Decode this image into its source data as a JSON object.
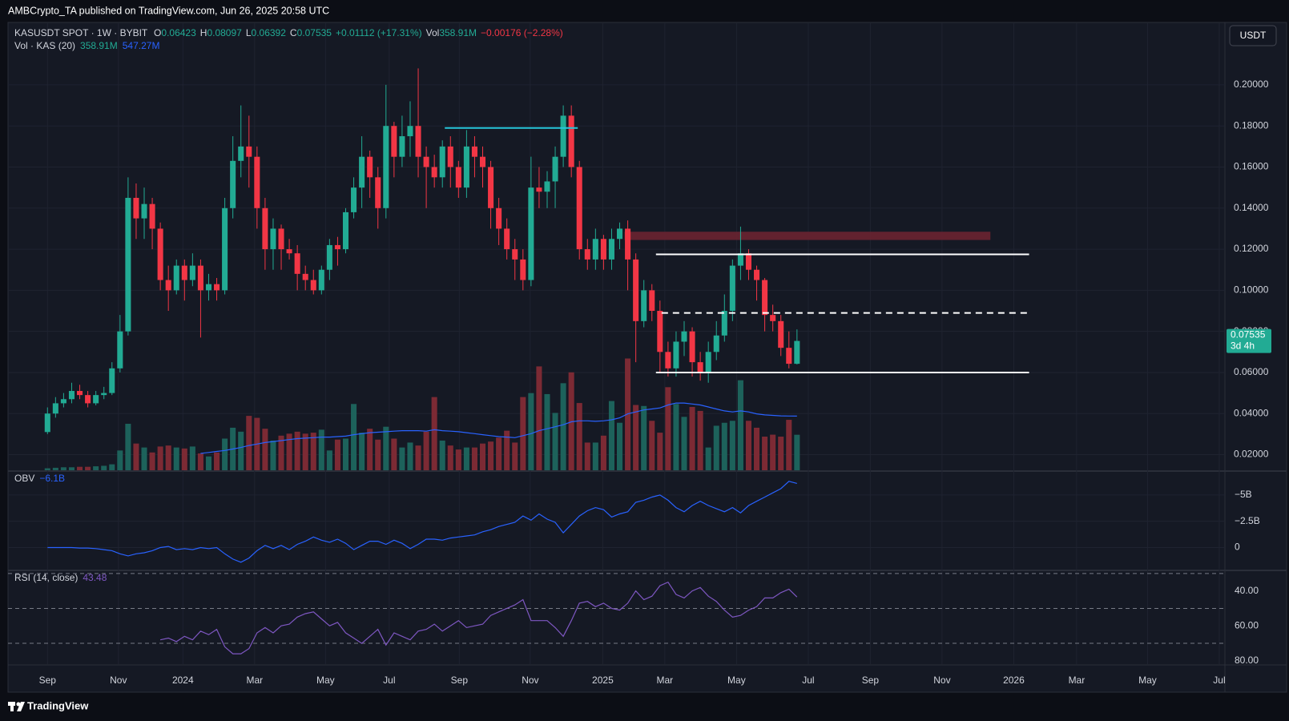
{
  "header": {
    "publisher": "AMBCrypto_TA published on TradingView.com, Jun 26, 2025 20:58 UTC",
    "currency": "USDT",
    "logo": "TradingView"
  },
  "chart_data": [
    {
      "type": "candlestick",
      "symbol": "KASUSDT SPOT · 1W · BYBIT",
      "ohlc_labels": [
        "O",
        "H",
        "L",
        "C"
      ],
      "change": "+0.01112 (+17.31%)",
      "volume_label": "Vol",
      "volume_text": "358.91M",
      "volume_change": "−0.00176 (−2.28%)",
      "vol_legend": {
        "name": "Vol · KAS (20)",
        "values": [
          "358.91M",
          "547.27M"
        ]
      },
      "countdown": "3d 4h",
      "up_color": "#22ab94",
      "down_color": "#f23645",
      "volume_up_color": "#1d625b",
      "volume_down_color": "#7c2a34",
      "xlim": [
        -4.9,
        146.1
      ],
      "xticks": [
        {
          "value": 0,
          "label": "Sep"
        },
        {
          "value": 8.8,
          "label": "Nov"
        },
        {
          "value": 16.8,
          "label": "2024"
        },
        {
          "value": 25.7,
          "label": "Mar"
        },
        {
          "value": 34.5,
          "label": "May"
        },
        {
          "value": 42.4,
          "label": "Jul"
        },
        {
          "value": 51.1,
          "label": "Sep"
        },
        {
          "value": 59.9,
          "label": "Nov"
        },
        {
          "value": 68.9,
          "label": "2025"
        },
        {
          "value": 76.6,
          "label": "Mar"
        },
        {
          "value": 85.5,
          "label": "May"
        },
        {
          "value": 94.4,
          "label": "Jul"
        },
        {
          "value": 102.1,
          "label": "Sep"
        },
        {
          "value": 111,
          "label": "Nov"
        },
        {
          "value": 119.9,
          "label": "2026"
        },
        {
          "value": 127.7,
          "label": "Mar"
        },
        {
          "value": 136.5,
          "label": "May"
        },
        {
          "value": 145.4,
          "label": "Jul"
        }
      ],
      "ylim": [
        0.0124,
        0.23
      ],
      "yticks": [
        {
          "value": 0.02,
          "label": "0.02000"
        },
        {
          "value": 0.04,
          "label": "0.04000"
        },
        {
          "value": 0.06,
          "label": "0.06000"
        },
        {
          "value": 0.08,
          "label": "0.08000"
        },
        {
          "value": 0.1,
          "label": "0.10000"
        },
        {
          "value": 0.12,
          "label": "0.12000"
        },
        {
          "value": 0.14,
          "label": "0.14000"
        },
        {
          "value": 0.16,
          "label": "0.16000"
        },
        {
          "value": 0.18,
          "label": "0.18000"
        },
        {
          "value": 0.2,
          "label": "0.20000"
        }
      ],
      "grid": true,
      "open": [
        0.031,
        0.04,
        0.045,
        0.047,
        0.051,
        0.049,
        0.045,
        0.049,
        0.05,
        0.062,
        0.08,
        0.145,
        0.135,
        0.142,
        0.13,
        0.105,
        0.1,
        0.112,
        0.105,
        0.112,
        0.1,
        0.103,
        0.1,
        0.14,
        0.163,
        0.17,
        0.165,
        0.14,
        0.12,
        0.13,
        0.12,
        0.118,
        0.108,
        0.105,
        0.1,
        0.11,
        0.122,
        0.12,
        0.138,
        0.15,
        0.165,
        0.155,
        0.14,
        0.18,
        0.165,
        0.175,
        0.18,
        0.165,
        0.16,
        0.155,
        0.17,
        0.16,
        0.15,
        0.17,
        0.165,
        0.16,
        0.14,
        0.13,
        0.12,
        0.115,
        0.105,
        0.15,
        0.148,
        0.153,
        0.165,
        0.185,
        0.16,
        0.12,
        0.115,
        0.125,
        0.115,
        0.125,
        0.13,
        0.115,
        0.085,
        0.1,
        0.09,
        0.07,
        0.062,
        0.075,
        0.08,
        0.065,
        0.06,
        0.07,
        0.078,
        0.09,
        0.112,
        0.118,
        0.11,
        0.105,
        0.088,
        0.085,
        0.072,
        0.06423
      ],
      "high": [
        0.043,
        0.048,
        0.05,
        0.055,
        0.054,
        0.051,
        0.051,
        0.053,
        0.065,
        0.088,
        0.155,
        0.152,
        0.15,
        0.145,
        0.133,
        0.112,
        0.115,
        0.115,
        0.118,
        0.115,
        0.108,
        0.106,
        0.145,
        0.175,
        0.19,
        0.185,
        0.17,
        0.145,
        0.135,
        0.132,
        0.125,
        0.122,
        0.112,
        0.11,
        0.112,
        0.125,
        0.126,
        0.14,
        0.155,
        0.175,
        0.168,
        0.16,
        0.2,
        0.182,
        0.185,
        0.192,
        0.208,
        0.17,
        0.166,
        0.173,
        0.175,
        0.163,
        0.178,
        0.175,
        0.17,
        0.163,
        0.145,
        0.135,
        0.125,
        0.12,
        0.165,
        0.16,
        0.158,
        0.17,
        0.19,
        0.19,
        0.163,
        0.125,
        0.13,
        0.127,
        0.13,
        0.133,
        0.134,
        0.118,
        0.105,
        0.103,
        0.095,
        0.075,
        0.08,
        0.085,
        0.082,
        0.07,
        0.075,
        0.085,
        0.098,
        0.115,
        0.131,
        0.12,
        0.112,
        0.106,
        0.093,
        0.088,
        0.08,
        0.08097
      ],
      "low": [
        0.03,
        0.038,
        0.043,
        0.045,
        0.047,
        0.043,
        0.044,
        0.047,
        0.049,
        0.06,
        0.078,
        0.125,
        0.125,
        0.12,
        0.1,
        0.09,
        0.098,
        0.095,
        0.102,
        0.077,
        0.095,
        0.095,
        0.098,
        0.135,
        0.155,
        0.15,
        0.13,
        0.11,
        0.11,
        0.11,
        0.115,
        0.1,
        0.1,
        0.098,
        0.098,
        0.105,
        0.112,
        0.118,
        0.135,
        0.14,
        0.145,
        0.13,
        0.135,
        0.155,
        0.16,
        0.165,
        0.155,
        0.14,
        0.15,
        0.15,
        0.15,
        0.145,
        0.145,
        0.155,
        0.15,
        0.13,
        0.122,
        0.115,
        0.105,
        0.1,
        0.102,
        0.14,
        0.14,
        0.14,
        0.16,
        0.155,
        0.115,
        0.11,
        0.11,
        0.11,
        0.11,
        0.12,
        0.1,
        0.065,
        0.082,
        0.085,
        0.06,
        0.058,
        0.058,
        0.068,
        0.058,
        0.056,
        0.055,
        0.066,
        0.075,
        0.085,
        0.105,
        0.105,
        0.095,
        0.08,
        0.08,
        0.068,
        0.062,
        0.06392
      ],
      "close": [
        0.04,
        0.045,
        0.047,
        0.051,
        0.049,
        0.045,
        0.049,
        0.05,
        0.062,
        0.08,
        0.145,
        0.135,
        0.142,
        0.13,
        0.105,
        0.1,
        0.112,
        0.105,
        0.112,
        0.1,
        0.103,
        0.1,
        0.14,
        0.163,
        0.17,
        0.165,
        0.14,
        0.12,
        0.13,
        0.12,
        0.118,
        0.108,
        0.105,
        0.1,
        0.11,
        0.122,
        0.12,
        0.138,
        0.15,
        0.165,
        0.155,
        0.14,
        0.18,
        0.165,
        0.175,
        0.18,
        0.165,
        0.16,
        0.155,
        0.17,
        0.16,
        0.15,
        0.17,
        0.165,
        0.16,
        0.14,
        0.13,
        0.12,
        0.115,
        0.105,
        0.15,
        0.148,
        0.153,
        0.165,
        0.185,
        0.16,
        0.12,
        0.115,
        0.125,
        0.115,
        0.125,
        0.13,
        0.115,
        0.085,
        0.1,
        0.09,
        0.07,
        0.062,
        0.075,
        0.08,
        0.065,
        0.06,
        0.07,
        0.078,
        0.09,
        0.112,
        0.118,
        0.11,
        0.105,
        0.088,
        0.085,
        0.072,
        0.06423,
        0.07535
      ],
      "volume": [
        20,
        25,
        30,
        30,
        35,
        35,
        40,
        45,
        60,
        200,
        470,
        270,
        230,
        180,
        240,
        250,
        230,
        220,
        240,
        170,
        140,
        180,
        320,
        430,
        390,
        550,
        530,
        420,
        300,
        350,
        370,
        390,
        370,
        380,
        410,
        200,
        310,
        320,
        670,
        380,
        420,
        310,
        440,
        320,
        230,
        280,
        250,
        390,
        740,
        300,
        250,
        210,
        230,
        230,
        270,
        290,
        330,
        400,
        280,
        740,
        780,
        1050,
        770,
        580,
        880,
        990,
        680,
        280,
        280,
        350,
        700,
        480,
        1130,
        660,
        650,
        500,
        380,
        840,
        670,
        540,
        640,
        600,
        230,
        450,
        480,
        500,
        910,
        500,
        430,
        340,
        360,
        340,
        510,
        358.91
      ],
      "volume_ma": {
        "color": "#2962ff",
        "values": [
          null,
          null,
          null,
          null,
          null,
          null,
          null,
          null,
          null,
          null,
          null,
          null,
          null,
          null,
          null,
          null,
          null,
          null,
          null,
          170,
          180,
          190,
          200,
          215,
          230,
          250,
          265,
          280,
          290,
          300,
          310,
          320,
          325,
          330,
          335,
          335,
          340,
          345,
          360,
          370,
          380,
          385,
          390,
          395,
          400,
          400,
          400,
          395,
          410,
          400,
          395,
          390,
          380,
          370,
          360,
          350,
          340,
          335,
          330,
          350,
          370,
          400,
          420,
          440,
          460,
          490,
          500,
          500,
          495,
          500,
          510,
          530,
          570,
          590,
          610,
          620,
          630,
          660,
          680,
          680,
          670,
          660,
          640,
          620,
          600,
          590,
          600,
          590,
          570,
          560,
          555,
          550,
          548,
          547.27
        ]
      },
      "levels": [
        {
          "value": 0.179,
          "from": 49.3,
          "to": 65.8,
          "color": "#26c6da",
          "dashed": false
        },
        {
          "value": 0.1175,
          "from": 75.5,
          "to": 121.8,
          "color": "#ffffff",
          "dashed": false
        },
        {
          "value": 0.089,
          "from": 76.2,
          "to": 121.8,
          "color": "#ffffff",
          "dashed": true
        },
        {
          "value": 0.06,
          "from": 75.5,
          "to": 121.8,
          "color": "#ffffff",
          "dashed": false
        }
      ],
      "zones": [
        {
          "low": 0.1245,
          "high": 0.1285,
          "from": 71.6,
          "to": 117,
          "color": "#6a2431"
        }
      ]
    },
    {
      "type": "line",
      "name": "OBV",
      "value_label": "−6.1B",
      "color": "#2962ff",
      "ylim": [
        2.1,
        -7.2
      ],
      "yticks": [
        0,
        {
          "value": -2.5,
          "label": "−2.5B"
        },
        {
          "value": -5,
          "label": "−5B"
        }
      ],
      "values": [
        0.0,
        0.0,
        0.0,
        0.0,
        0.05,
        0.05,
        0.1,
        0.2,
        0.3,
        0.6,
        0.8,
        0.6,
        0.5,
        0.3,
        0.0,
        -0.1,
        0.2,
        0.1,
        0.2,
        0.0,
        0.1,
        0.0,
        0.6,
        1.1,
        1.4,
        1.0,
        0.3,
        -0.2,
        0.1,
        -0.2,
        0.2,
        -0.3,
        -0.6,
        -1.0,
        -0.7,
        -0.5,
        -0.8,
        -0.4,
        0.2,
        -0.2,
        -0.6,
        -0.6,
        -0.3,
        -0.7,
        -0.4,
        0.1,
        -0.3,
        -0.8,
        -0.8,
        -0.7,
        -0.9,
        -1.0,
        -1.1,
        -1.2,
        -1.5,
        -1.7,
        -2.0,
        -2.2,
        -2.4,
        -3.0,
        -2.6,
        -3.2,
        -2.7,
        -2.4,
        -1.4,
        -2.2,
        -3.0,
        -3.5,
        -3.8,
        -3.6,
        -2.9,
        -3.2,
        -3.4,
        -4.3,
        -4.5,
        -4.8,
        -5.0,
        -4.5,
        -3.8,
        -3.4,
        -4.0,
        -4.4,
        -4.0,
        -3.7,
        -3.4,
        -3.8,
        -3.3,
        -4.0,
        -4.4,
        -4.8,
        -5.2,
        -5.6,
        -6.3,
        -6.1
      ]
    },
    {
      "type": "line",
      "name": "RSI (14, close)",
      "color": "#7e57c2",
      "ylim": [
        81.9,
        28.7
      ],
      "yticks": [
        {
          "value": 40,
          "label": "40.00"
        },
        {
          "value": 60,
          "label": "60.00"
        },
        {
          "value": 80,
          "label": "80.00"
        }
      ],
      "bands": [
        70,
        50,
        30
      ],
      "band_fill": "#2a2442",
      "values": [
        null,
        null,
        null,
        null,
        null,
        null,
        null,
        null,
        null,
        null,
        null,
        null,
        null,
        null,
        68,
        67,
        69,
        66,
        68,
        63,
        65,
        62,
        72,
        76,
        76,
        73,
        64,
        61,
        64,
        60,
        59,
        55,
        53,
        52,
        56,
        60,
        58,
        64,
        67,
        70,
        66,
        62,
        71,
        64,
        66,
        68,
        63,
        62,
        59,
        63,
        60,
        57,
        61,
        60,
        59,
        54,
        52,
        50,
        48,
        45,
        57,
        57,
        57,
        61,
        66,
        57,
        47,
        46,
        49,
        47,
        50,
        51,
        47,
        40,
        45,
        43,
        37,
        35,
        42,
        44,
        40,
        38,
        43,
        46,
        51,
        55,
        54,
        51,
        49,
        44,
        44,
        41,
        39,
        43.48
      ]
    }
  ]
}
